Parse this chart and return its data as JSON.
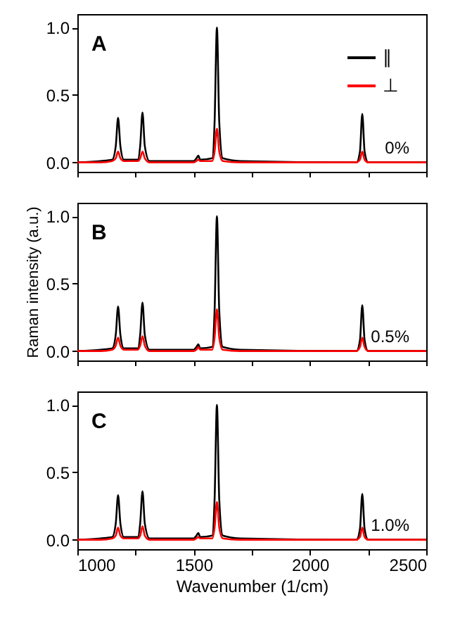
{
  "chart_data": [
    {
      "type": "line",
      "annotations": [
        "A",
        "0%"
      ],
      "legend": "top right",
      "tick_labels": "y",
      "x": [
        1000,
        1100,
        1150,
        1165,
        1175,
        1185,
        1200,
        1230,
        1260,
        1270,
        1280,
        1290,
        1310,
        1400,
        1500,
        1512,
        1520,
        1528,
        1580,
        1590,
        1600,
        1610,
        1625,
        1700,
        2200,
        2215,
        2225,
        2235,
        2250,
        2500
      ],
      "series": [
        {
          "name": "∥",
          "color": "#000000",
          "values": [
            0,
            0.01,
            0.02,
            0.12,
            0.33,
            0.12,
            0.02,
            0.02,
            0.02,
            0.12,
            0.37,
            0.12,
            0.01,
            0.01,
            0.01,
            0.03,
            0.05,
            0.02,
            0.03,
            0.3,
            1.0,
            0.3,
            0.03,
            0.01,
            0,
            0.08,
            0.36,
            0.08,
            0,
            0
          ]
        },
        {
          "name": "⊥",
          "color": "#ff0000",
          "values": [
            0,
            0,
            0.01,
            0.03,
            0.08,
            0.03,
            0.01,
            0.01,
            0.01,
            0.03,
            0.08,
            0.03,
            0,
            0,
            0,
            0.01,
            0.02,
            0.01,
            0.01,
            0.08,
            0.25,
            0.08,
            0.01,
            0,
            0,
            0.02,
            0.08,
            0.02,
            0,
            0
          ]
        }
      ],
      "xlim": [
        1000,
        2500
      ],
      "xticks": [
        1000,
        {
          "value": 1250,
          "label": null
        },
        1500,
        {
          "value": 1750,
          "label": null
        },
        2000,
        {
          "value": 2250,
          "label": null
        },
        2500
      ],
      "ylim": [
        -0.07,
        1.1
      ],
      "yticks": [
        {
          "value": 0,
          "label": "0.0"
        },
        {
          "value": 0.5,
          "label": "0.5"
        },
        {
          "value": 1,
          "label": "1.0"
        }
      ]
    },
    {
      "type": "line",
      "annotations": [
        "B",
        "0.5%"
      ],
      "ylabel": "Raman intensity (a.u.)",
      "tick_labels": "y",
      "x": [
        1000,
        1100,
        1150,
        1165,
        1175,
        1185,
        1200,
        1230,
        1260,
        1270,
        1280,
        1290,
        1310,
        1400,
        1500,
        1512,
        1520,
        1528,
        1580,
        1590,
        1600,
        1610,
        1625,
        1700,
        2200,
        2215,
        2225,
        2235,
        2250,
        2500
      ],
      "series": [
        {
          "color": "#000000",
          "values": [
            0,
            0.01,
            0.02,
            0.12,
            0.33,
            0.12,
            0.02,
            0.02,
            0.02,
            0.12,
            0.36,
            0.12,
            0.01,
            0.01,
            0.01,
            0.03,
            0.05,
            0.02,
            0.03,
            0.3,
            1.0,
            0.3,
            0.03,
            0.01,
            0,
            0.08,
            0.34,
            0.08,
            0,
            0
          ]
        },
        {
          "color": "#ff0000",
          "values": [
            0,
            0,
            0.01,
            0.04,
            0.1,
            0.04,
            0.01,
            0.01,
            0.01,
            0.04,
            0.11,
            0.04,
            0,
            0,
            0,
            0.01,
            0.03,
            0.01,
            0.01,
            0.1,
            0.31,
            0.1,
            0.01,
            0,
            0,
            0.03,
            0.1,
            0.03,
            0,
            0
          ]
        }
      ],
      "xlim": [
        1000,
        2500
      ],
      "xticks": [
        1000,
        {
          "value": 1250,
          "label": null
        },
        1500,
        {
          "value": 1750,
          "label": null
        },
        2000,
        {
          "value": 2250,
          "label": null
        },
        2500
      ],
      "ylim": [
        -0.07,
        1.1
      ],
      "yticks": [
        {
          "value": 0,
          "label": "0.0"
        },
        {
          "value": 0.5,
          "label": "0.5"
        },
        {
          "value": 1,
          "label": "1.0"
        }
      ]
    },
    {
      "type": "line",
      "annotations": [
        "C",
        "1.0%"
      ],
      "xlabel": "Wavenumber (1/cm)",
      "x": [
        1000,
        1100,
        1150,
        1165,
        1175,
        1185,
        1200,
        1230,
        1260,
        1270,
        1280,
        1290,
        1310,
        1400,
        1500,
        1512,
        1520,
        1528,
        1580,
        1590,
        1600,
        1610,
        1625,
        1700,
        2200,
        2215,
        2225,
        2235,
        2250,
        2500
      ],
      "series": [
        {
          "color": "#000000",
          "values": [
            0,
            0.01,
            0.02,
            0.12,
            0.33,
            0.12,
            0.02,
            0.02,
            0.02,
            0.12,
            0.36,
            0.12,
            0.01,
            0.01,
            0.01,
            0.03,
            0.05,
            0.02,
            0.03,
            0.3,
            1.0,
            0.3,
            0.03,
            0.01,
            0,
            0.08,
            0.34,
            0.08,
            0,
            0
          ]
        },
        {
          "color": "#ff0000",
          "values": [
            0,
            0,
            0.01,
            0.03,
            0.09,
            0.03,
            0.01,
            0.01,
            0.01,
            0.03,
            0.1,
            0.03,
            0,
            0,
            0,
            0.01,
            0.02,
            0.01,
            0.01,
            0.09,
            0.28,
            0.09,
            0.01,
            0,
            0,
            0.02,
            0.09,
            0.02,
            0,
            0
          ]
        }
      ],
      "xlim": [
        1000,
        2500
      ],
      "xticks": [
        1000,
        {
          "value": 1250,
          "label": null
        },
        1500,
        {
          "value": 1750,
          "label": null
        },
        2000,
        {
          "value": 2250,
          "label": null
        },
        2500
      ],
      "ylim": [
        -0.07,
        1.1
      ],
      "yticks": [
        {
          "value": 0,
          "label": "0.0"
        },
        {
          "value": 0.5,
          "label": "0.5"
        },
        {
          "value": 1,
          "label": "1.0"
        }
      ]
    }
  ]
}
